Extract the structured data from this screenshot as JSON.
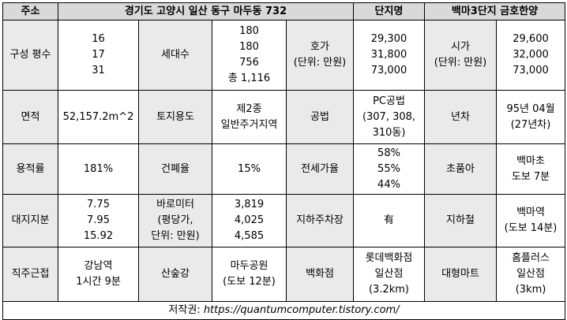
{
  "header": {
    "address_label": "주소",
    "address": "경기도 고양시 일산 동구 마두동 732",
    "name_label": "단지명",
    "name": "백마3단지 금호한양"
  },
  "table": {
    "rows": [
      [
        [
          "구성 평수"
        ],
        [
          "16",
          "17",
          "31"
        ],
        [
          "세대수"
        ],
        [
          "180",
          "180",
          "756",
          "총 1,116"
        ],
        [
          "호가",
          "(단위: 만원)"
        ],
        [
          "29,300",
          "31,800",
          "73,000"
        ],
        [
          "시가",
          "(단위: 만원)"
        ],
        [
          "29,600",
          "32,000",
          "73,000"
        ]
      ],
      [
        [
          "면적"
        ],
        [
          "52,157.2m^2"
        ],
        [
          "토지용도"
        ],
        [
          "제2종",
          "일반주거지역"
        ],
        [
          "공법"
        ],
        [
          "PC공법",
          "(307, 308,",
          "310동)"
        ],
        [
          "년차"
        ],
        [
          "95년 04월",
          "(27년차)"
        ]
      ],
      [
        [
          "용적률"
        ],
        [
          "181%"
        ],
        [
          "건폐율"
        ],
        [
          "15%"
        ],
        [
          "전세가율"
        ],
        [
          "58%",
          "55%",
          "44%"
        ],
        [
          "초품아"
        ],
        [
          "백마초",
          "도보 7분"
        ]
      ],
      [
        [
          "대지지분"
        ],
        [
          "7.75",
          "7.95",
          "15.92"
        ],
        [
          "바로미터",
          "(평당가,",
          "단위: 만원)"
        ],
        [
          "3,819",
          "4,025",
          "4,585"
        ],
        [
          "지하주차장"
        ],
        [
          "有"
        ],
        [
          "지하철"
        ],
        [
          "백마역",
          "(도보 14분)"
        ]
      ],
      [
        [
          "직주근접"
        ],
        [
          "강남역",
          "1시간 9분"
        ],
        [
          "산숲강"
        ],
        [
          "마두공원",
          "(도보 12분)"
        ],
        [
          "백화점"
        ],
        [
          "롯데백화점",
          "일산점",
          "(3.2km)"
        ],
        [
          "대형마트"
        ],
        [
          "홈플러스",
          "일산점",
          "(3km)"
        ]
      ]
    ]
  },
  "footer": {
    "label": "저작권:",
    "url": "https://quantumcomputer.tistory.com/"
  }
}
